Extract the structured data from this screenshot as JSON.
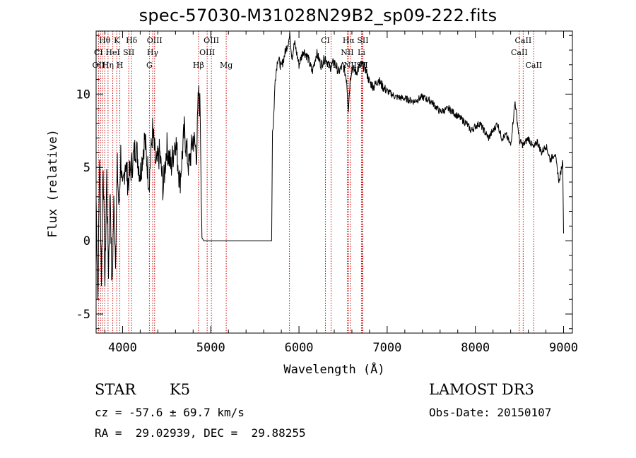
{
  "chart_data": {
    "type": "line",
    "title": "spec-57030-M31028N29B2_sp09-222.fits",
    "xlabel": "Wavelength (Å)",
    "ylabel": "Flux (relative)",
    "xlim": [
      3700,
      9100
    ],
    "ylim": [
      -6.3,
      14.3
    ],
    "xticks": [
      4000,
      5000,
      6000,
      7000,
      8000,
      9000
    ],
    "yticks": [
      -5,
      0,
      5,
      10
    ],
    "series": [
      {
        "name": "flux",
        "x": [
          3700,
          3720,
          3740,
          3760,
          3780,
          3800,
          3820,
          3840,
          3860,
          3880,
          3900,
          3920,
          3940,
          3960,
          3980,
          4000,
          4030,
          4060,
          4100,
          4150,
          4200,
          4250,
          4300,
          4340,
          4380,
          4420,
          4460,
          4500,
          4550,
          4600,
          4650,
          4700,
          4750,
          4800,
          4840,
          4860,
          4880,
          4900,
          4920,
          5000,
          5200,
          5400,
          5600,
          5690,
          5700,
          5710,
          5730,
          5760,
          5800,
          5850,
          5900,
          5920,
          5950,
          6000,
          6050,
          6100,
          6150,
          6200,
          6250,
          6300,
          6350,
          6400,
          6450,
          6500,
          6540,
          6560,
          6580,
          6600,
          6650,
          6700,
          6750,
          6800,
          6850,
          6900,
          6950,
          7000,
          7100,
          7200,
          7300,
          7400,
          7500,
          7600,
          7700,
          7800,
          7900,
          7950,
          8000,
          8050,
          8100,
          8150,
          8200,
          8250,
          8300,
          8350,
          8400,
          8450,
          8500,
          8542,
          8600,
          8662,
          8700,
          8750,
          8800,
          8850,
          8900,
          8950,
          8990,
          9000
        ],
        "y": [
          3.0,
          -4.0,
          6.0,
          -2.5,
          5.5,
          -3.0,
          4.5,
          -2.0,
          3.5,
          -3.5,
          2.5,
          -1.0,
          5.0,
          2.0,
          6.0,
          3.0,
          5.5,
          4.0,
          5.0,
          6.5,
          4.5,
          7.0,
          4.0,
          7.5,
          5.0,
          6.0,
          3.5,
          6.5,
          5.0,
          7.0,
          4.0,
          7.5,
          5.0,
          7.0,
          6.0,
          10.0,
          9.0,
          0.2,
          0.0,
          0.0,
          0.0,
          0.0,
          0.0,
          0.0,
          7.5,
          8.0,
          11.0,
          12.5,
          11.8,
          13.0,
          14.0,
          12.5,
          13.5,
          12.0,
          13.0,
          12.5,
          11.5,
          12.8,
          12.0,
          12.5,
          11.8,
          12.2,
          11.5,
          12.0,
          11.0,
          9.0,
          11.0,
          11.8,
          11.5,
          12.0,
          11.8,
          10.8,
          10.5,
          11.0,
          10.5,
          10.2,
          9.8,
          9.7,
          9.5,
          9.8,
          9.5,
          8.8,
          9.0,
          8.5,
          8.0,
          7.5,
          7.8,
          8.0,
          7.5,
          7.0,
          7.5,
          8.0,
          7.0,
          7.2,
          6.5,
          9.5,
          6.8,
          6.5,
          7.0,
          6.3,
          6.8,
          6.0,
          6.5,
          5.5,
          6.0,
          4.0,
          5.5,
          0.5
        ]
      }
    ],
    "line_labels": [
      {
        "text": "Hθ",
        "x": 3798,
        "row": 0
      },
      {
        "text": "K",
        "x": 3934,
        "row": 0
      },
      {
        "text": "Hδ",
        "x": 4102,
        "row": 0
      },
      {
        "text": "OIII",
        "x": 4363,
        "row": 0
      },
      {
        "text": "OIII",
        "x": 5007,
        "row": 0
      },
      {
        "text": "CI",
        "x": 6300,
        "row": 0
      },
      {
        "text": "Hα",
        "x": 6563,
        "row": 0
      },
      {
        "text": "SII",
        "x": 6724,
        "row": 0
      },
      {
        "text": "CaII",
        "x": 8542,
        "row": 0
      },
      {
        "text": "CI",
        "x": 3727,
        "row": 1
      },
      {
        "text": "HeI",
        "x": 3889,
        "row": 1
      },
      {
        "text": "SII",
        "x": 4070,
        "row": 1
      },
      {
        "text": "Hγ",
        "x": 4341,
        "row": 1
      },
      {
        "text": "OIII",
        "x": 4959,
        "row": 1
      },
      {
        "text": "NII",
        "x": 6548,
        "row": 1
      },
      {
        "text": "Li",
        "x": 6708,
        "row": 1
      },
      {
        "text": "CaII",
        "x": 8498,
        "row": 1
      },
      {
        "text": "OII",
        "x": 3727,
        "row": 2
      },
      {
        "text": "Hη",
        "x": 3835,
        "row": 2
      },
      {
        "text": "H",
        "x": 3969,
        "row": 2
      },
      {
        "text": "G",
        "x": 4304,
        "row": 2
      },
      {
        "text": "Hβ",
        "x": 4861,
        "row": 2
      },
      {
        "text": "Mg",
        "x": 5175,
        "row": 2
      },
      {
        "text": "OI",
        "x": 6364,
        "row": 2
      },
      {
        "text": "NII",
        "x": 6583,
        "row": 2
      },
      {
        "text": "SII",
        "x": 6717,
        "row": 2
      },
      {
        "text": "CaII",
        "x": 8662,
        "row": 2
      }
    ],
    "line_markers": [
      3727,
      3750,
      3771,
      3798,
      3835,
      3889,
      3934,
      3969,
      4070,
      4102,
      4304,
      4341,
      4363,
      4861,
      4959,
      5007,
      5175,
      5892,
      6300,
      6364,
      6548,
      6563,
      6583,
      6708,
      6717,
      6724,
      8498,
      8542,
      8662
    ]
  },
  "info": {
    "class": "STAR",
    "subclass": "K5",
    "survey": "LAMOST DR3",
    "cz": "cz = -57.6 ± 69.7 km/s",
    "obs_date": "Obs-Date: 20150107",
    "coords": "RA =  29.02939, DEC =  29.88255"
  },
  "colors": {
    "marker": "#cc0000",
    "line": "#000000"
  }
}
